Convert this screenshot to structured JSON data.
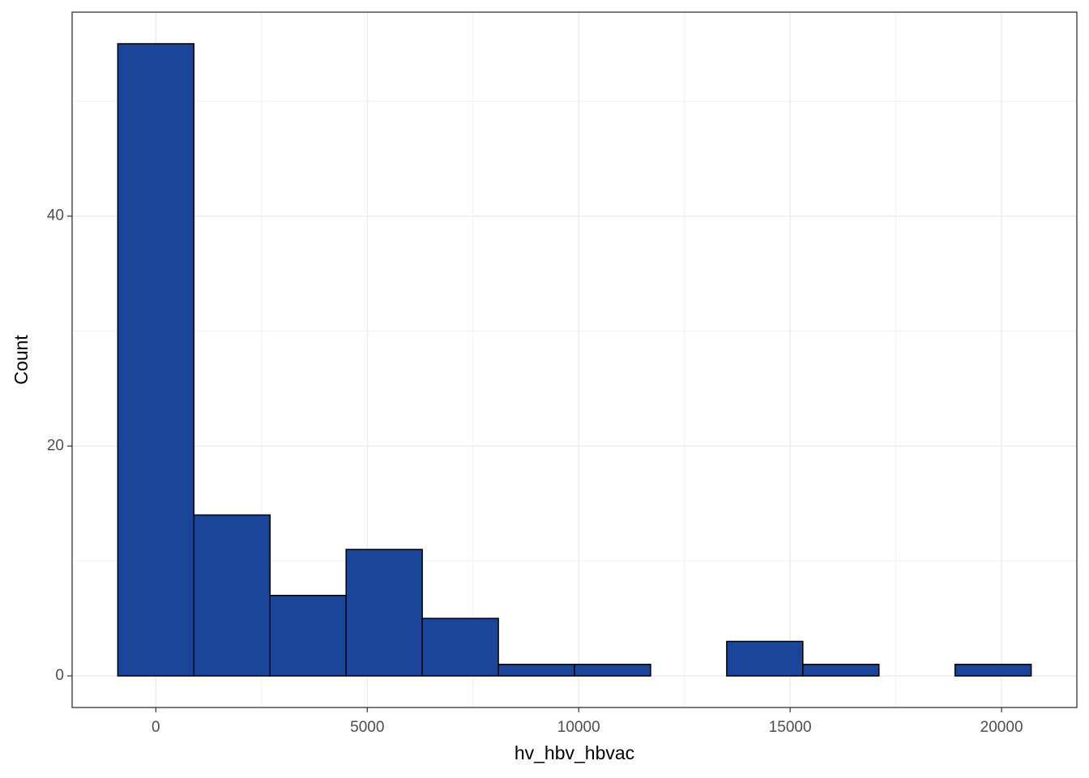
{
  "chart_data": {
    "type": "histogram",
    "x_label": "hv_hbv_hbvac",
    "y_label": "Count",
    "bins": [
      -900,
      900,
      2700,
      4500,
      6300,
      8100,
      9900,
      11700,
      13500,
      15300,
      17100,
      18900,
      20700
    ],
    "values": [
      55,
      14,
      7,
      11,
      5,
      1,
      1,
      0,
      3,
      1,
      0,
      1
    ],
    "color": "#1a4599",
    "xlim": [
      -1980,
      21780
    ],
    "xticks": [
      0,
      5000,
      10000,
      15000,
      20000
    ],
    "ylim": [
      -2.75,
      57.75
    ],
    "yticks": [
      0,
      20,
      40
    ],
    "grid": true
  }
}
